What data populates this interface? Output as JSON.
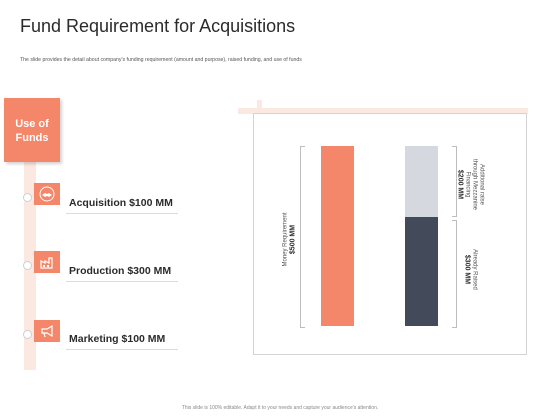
{
  "header": {
    "title": "Fund Requirement for Acquisitions",
    "subtitle": "The slide provides the detail about company's funding requirement (amount and purpose), raised funding, and use of funds"
  },
  "use_of_funds": {
    "label_line1": "Use of",
    "label_line2": "Funds",
    "items": [
      {
        "icon": "handshake-icon",
        "label": "Acquisition $100 MM"
      },
      {
        "icon": "factory-icon",
        "label": "Production $300 MM"
      },
      {
        "icon": "megaphone-icon",
        "label": "Marketing $100 MM"
      }
    ]
  },
  "chart": {
    "money_requirement_label": "Money Requirement",
    "money_requirement_value": "$500 MM",
    "additional_label_line1": "Additional raise",
    "additional_label_line2": "through Mezzanine",
    "additional_label_line3": "Financing",
    "additional_value": "$200 MM",
    "raised_label": "Already Raised",
    "raised_value": "$300 MM"
  },
  "colors": {
    "accent": "#f4876a",
    "light_accent": "#fbe9e1",
    "dark_bar": "#434b5a",
    "light_bar": "#d5d8de"
  },
  "footer": {
    "text": "This slide is 100% editable. Adapt it to your needs and capture your audience's attention."
  }
}
